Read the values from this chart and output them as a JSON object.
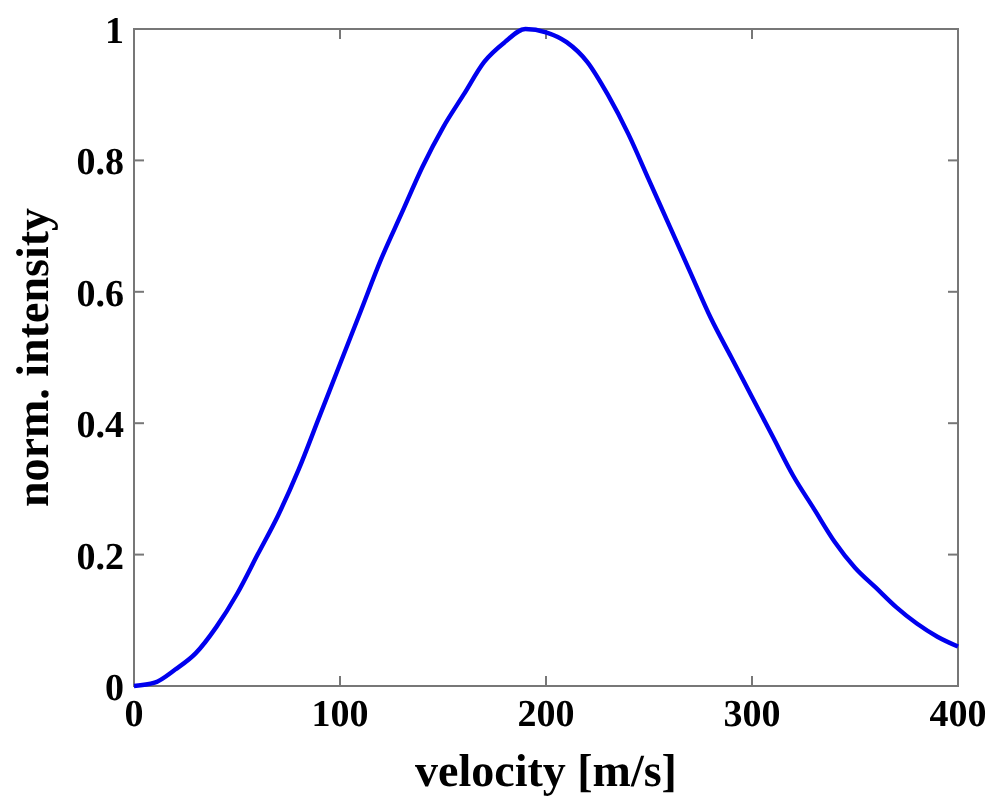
{
  "chart_data": {
    "type": "line",
    "xlabel": "velocity [m/s]",
    "ylabel": "norm. intensity",
    "x": [
      0,
      10,
      20,
      30,
      40,
      50,
      60,
      70,
      80,
      90,
      100,
      110,
      120,
      130,
      140,
      150,
      160,
      170,
      180,
      190,
      200,
      210,
      220,
      230,
      240,
      250,
      260,
      270,
      280,
      290,
      300,
      310,
      320,
      330,
      340,
      350,
      360,
      370,
      380,
      390,
      400
    ],
    "series": [
      {
        "color": "#0000ee",
        "values": [
          0,
          0.005,
          0.025,
          0.05,
          0.09,
          0.14,
          0.2,
          0.26,
          0.33,
          0.41,
          0.49,
          0.57,
          0.65,
          0.72,
          0.79,
          0.85,
          0.9,
          0.95,
          0.98,
          1,
          0.995,
          0.98,
          0.95,
          0.9,
          0.84,
          0.77,
          0.7,
          0.63,
          0.56,
          0.5,
          0.44,
          0.38,
          0.32,
          0.27,
          0.22,
          0.18,
          0.15,
          0.12,
          0.095,
          0.075,
          0.06
        ]
      }
    ],
    "xlim": [
      0,
      400
    ],
    "xticks": [
      0,
      100,
      200,
      300,
      400
    ],
    "ylim": [
      0,
      1
    ],
    "yticks": [
      0,
      0.2,
      0.4,
      0.6,
      0.8,
      1
    ],
    "grid": false,
    "marker": "none",
    "line_style": "solid"
  }
}
